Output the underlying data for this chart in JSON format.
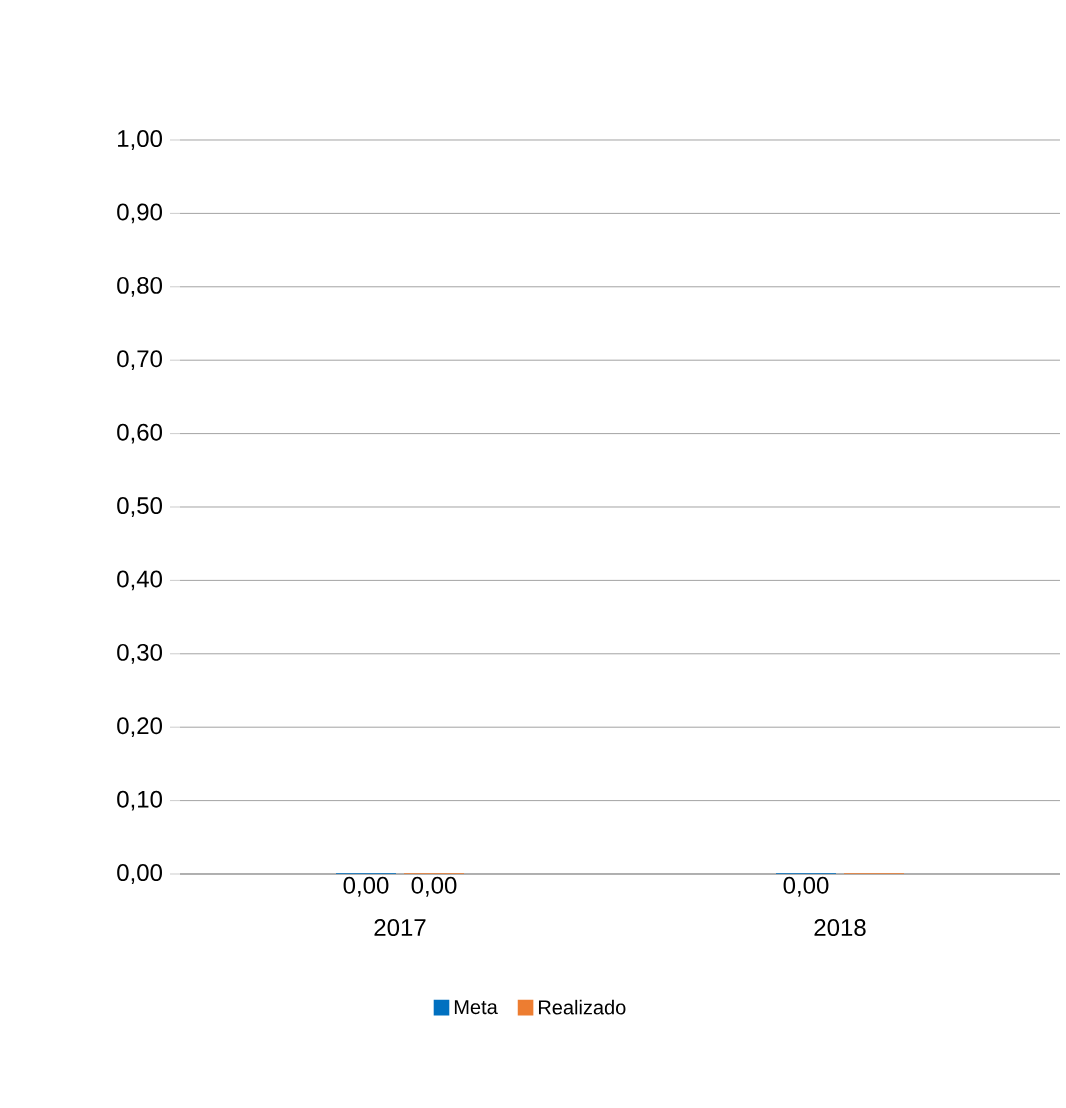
{
  "chart_data": {
    "type": "bar",
    "categories": [
      "2017",
      "2018"
    ],
    "series": [
      {
        "name": "Meta",
        "color": "#0070c0",
        "values": [
          0,
          0
        ],
        "value_labels": [
          "0,00",
          "0,00"
        ]
      },
      {
        "name": "Realizado",
        "color": "#ed7d31",
        "values": [
          0,
          0
        ],
        "value_labels": [
          "0,00",
          null
        ]
      }
    ],
    "ylim": [
      0,
      1
    ],
    "yticks": [
      {
        "value": 0,
        "label": "0,00"
      },
      {
        "value": 0.1,
        "label": "0,10"
      },
      {
        "value": 0.2,
        "label": "0,20"
      },
      {
        "value": 0.3,
        "label": "0,30"
      },
      {
        "value": 0.4,
        "label": "0,40"
      },
      {
        "value": 0.5,
        "label": "0,50"
      },
      {
        "value": 0.6,
        "label": "0,60"
      },
      {
        "value": 0.7,
        "label": "0,70"
      },
      {
        "value": 0.8,
        "label": "0,80"
      },
      {
        "value": 0.9,
        "label": "0,90"
      },
      {
        "value": 1,
        "label": "1,00"
      }
    ],
    "grid": "y",
    "legend": "bottom"
  }
}
